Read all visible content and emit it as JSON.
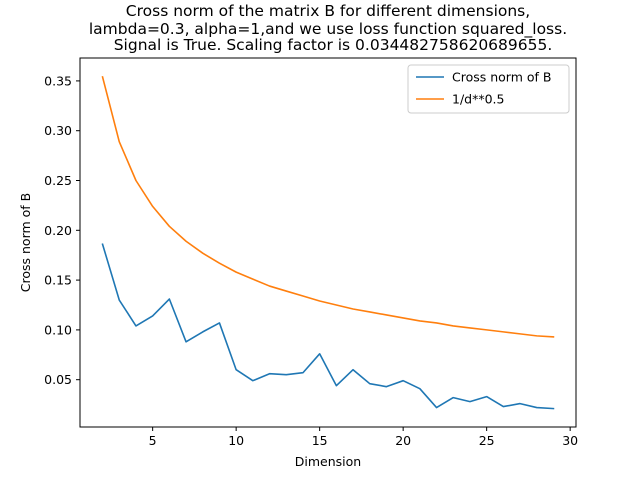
{
  "chart_data": {
    "type": "line",
    "title": [
      "Cross norm of the matrix B for different dimensions,",
      "lambda=0.3, alpha=1,and we use loss function squared_loss.",
      "Signal is True. Scaling factor is 0.034482758620689655."
    ],
    "xlabel": "Dimension",
    "ylabel": "Cross norm of B",
    "xlim": [
      0.65,
      30.35
    ],
    "ylim": [
      0.0025,
      0.373
    ],
    "xticks": [
      5,
      10,
      15,
      20,
      25,
      30
    ],
    "yticks": [
      0.05,
      0.1,
      0.15,
      0.2,
      0.25,
      0.3,
      0.35
    ],
    "ytick_labels": [
      "0.05",
      "0.10",
      "0.15",
      "0.20",
      "0.25",
      "0.30",
      "0.35"
    ],
    "grid": false,
    "legend_position": "top-right",
    "x": [
      2,
      3,
      4,
      5,
      6,
      7,
      8,
      9,
      10,
      11,
      12,
      13,
      14,
      15,
      16,
      17,
      18,
      19,
      20,
      21,
      22,
      23,
      24,
      25,
      26,
      27,
      28,
      29
    ],
    "series": [
      {
        "name": "Cross norm of B",
        "color": "#1f77b4",
        "values": [
          0.186,
          0.13,
          0.104,
          0.114,
          0.131,
          0.088,
          0.098,
          0.107,
          0.06,
          0.049,
          0.056,
          0.055,
          0.057,
          0.076,
          0.044,
          0.06,
          0.046,
          0.043,
          0.049,
          0.041,
          0.022,
          0.032,
          0.028,
          0.033,
          0.023,
          0.026,
          0.022,
          0.021
        ]
      },
      {
        "name": "1/d**0.5",
        "color": "#ff7f0e",
        "values": [
          0.354,
          0.289,
          0.25,
          0.224,
          0.204,
          0.189,
          0.177,
          0.167,
          0.158,
          0.151,
          0.144,
          0.139,
          0.134,
          0.129,
          0.125,
          0.121,
          0.118,
          0.115,
          0.112,
          0.109,
          0.107,
          0.104,
          0.102,
          0.1,
          0.098,
          0.096,
          0.094,
          0.093
        ]
      }
    ]
  }
}
